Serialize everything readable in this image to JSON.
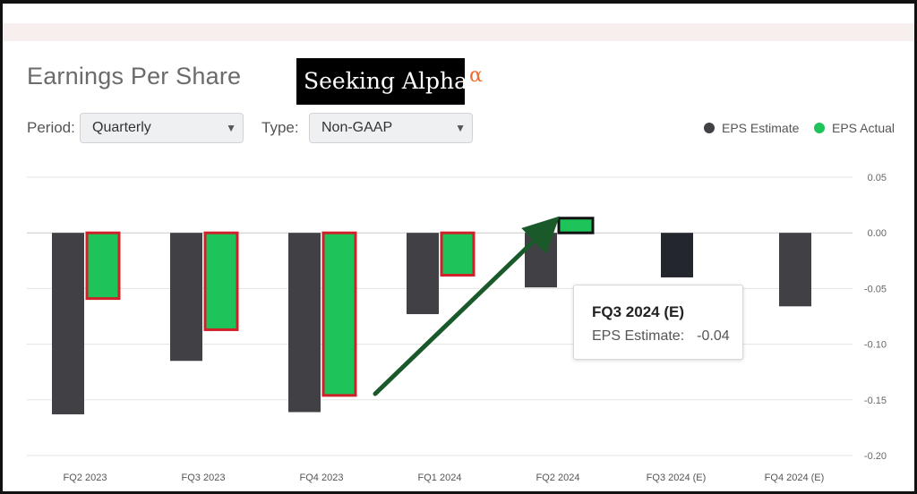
{
  "header": {
    "title": "Earnings Per Share",
    "logo_text": "Seeking Alpha",
    "logo_symbol": "α"
  },
  "controls": {
    "period_label": "Period:",
    "period_value": "Quarterly",
    "type_label": "Type:",
    "type_value": "Non-GAAP",
    "caret": "▼"
  },
  "legend": {
    "estimate_label": "EPS Estimate",
    "actual_label": "EPS Actual"
  },
  "tooltip": {
    "title": "FQ3 2024 (E)",
    "label": "EPS Estimate:",
    "value": "-0.04"
  },
  "colors": {
    "estimate": "#404045",
    "estimate_highlight": "#23272d",
    "actual": "#1ec45a",
    "highlight_border": "#d0202a",
    "arrow": "#1a5a2a",
    "grid": "#e3e3e3"
  },
  "chart_data": {
    "type": "bar",
    "categories": [
      "FQ2 2023",
      "FQ3 2023",
      "FQ4 2023",
      "FQ1 2024",
      "FQ2 2024",
      "FQ3 2024 (E)",
      "FQ4 2024 (E)"
    ],
    "series": [
      {
        "name": "EPS Estimate",
        "values": [
          -0.163,
          -0.115,
          -0.161,
          -0.073,
          -0.049,
          -0.04,
          -0.066
        ]
      },
      {
        "name": "EPS Actual",
        "values": [
          -0.059,
          -0.087,
          -0.146,
          -0.038,
          0.01,
          null,
          null
        ]
      }
    ],
    "yticks": [
      "0.05",
      "0.00",
      "-0.05",
      "-0.10",
      "-0.15",
      "-0.20"
    ],
    "ylim": [
      -0.2,
      0.05
    ],
    "grid": true,
    "legend_position": "top-right",
    "annotation": "arrow from FQ4 2023 toward FQ2 2024 actual"
  }
}
